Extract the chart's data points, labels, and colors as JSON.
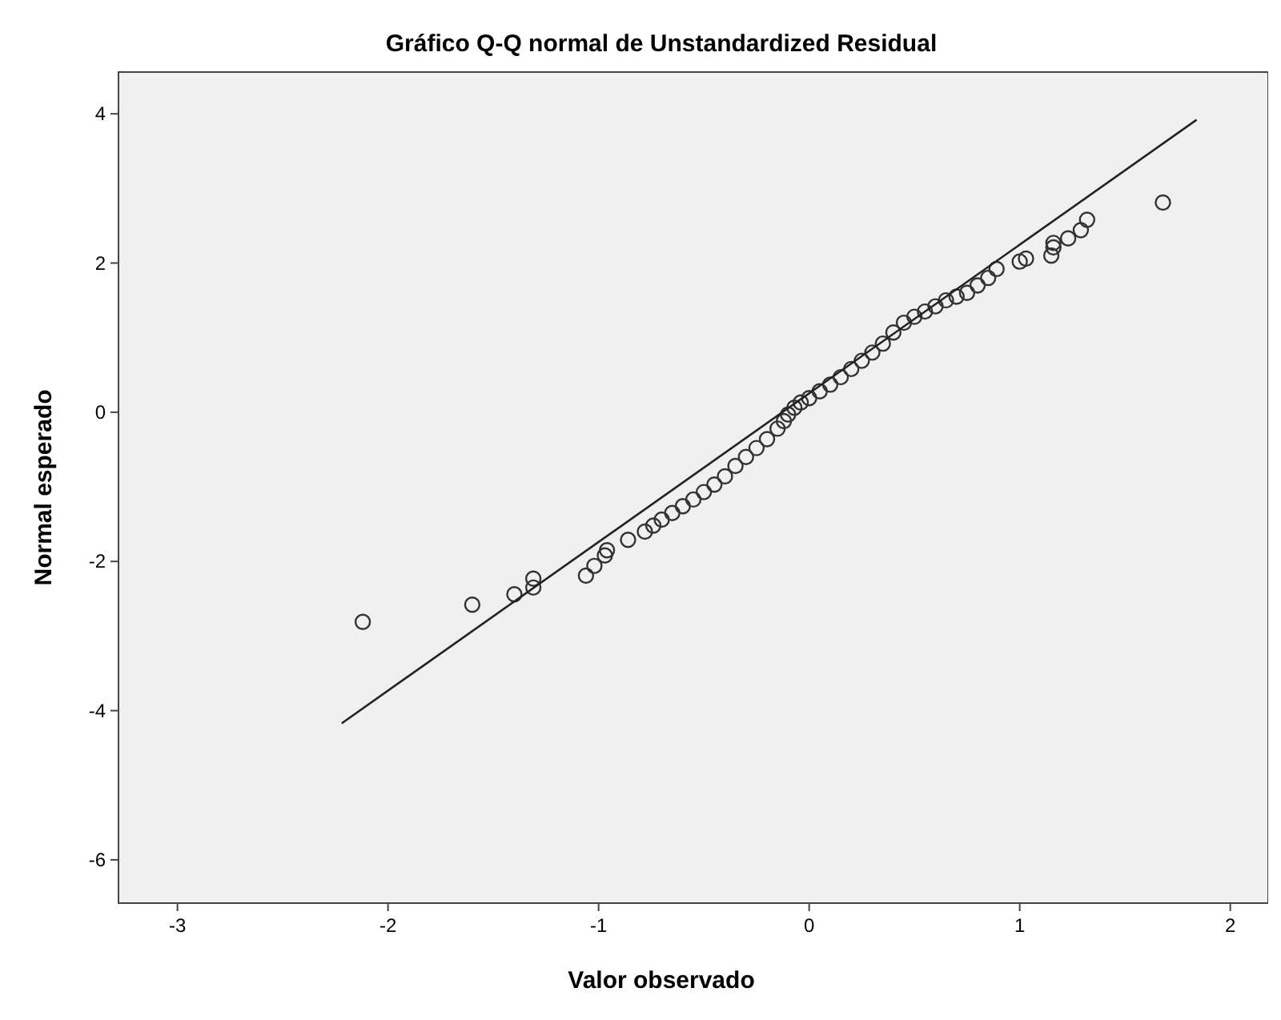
{
  "chart_data": {
    "type": "scatter",
    "title": "Gráfico Q-Q normal de Unstandardized Residual",
    "xlabel": "Valor observado",
    "ylabel": "Normal esperado",
    "xlim": [
      -3.28,
      2.18
    ],
    "ylim": [
      -6.58,
      4.56
    ],
    "xticks": [
      -3,
      -2,
      -1,
      0,
      1,
      2
    ],
    "yticks": [
      -6,
      -4,
      -2,
      0,
      2,
      4
    ],
    "grid": false,
    "marker": "circle",
    "series": [
      {
        "color": "#333333",
        "x": [
          -2.12,
          -1.6,
          -1.4,
          -1.31,
          -1.31,
          -1.06,
          -1.02,
          -0.97,
          -0.96,
          -0.86,
          -0.78,
          -0.74,
          -0.7,
          -0.65,
          -0.6,
          -0.55,
          -0.5,
          -0.45,
          -0.4,
          -0.35,
          -0.3,
          -0.25,
          -0.2,
          -0.15,
          -0.12,
          -0.1,
          -0.07,
          -0.04,
          0,
          0.05,
          0.1,
          0.15,
          0.2,
          0.25,
          0.3,
          0.35,
          0.4,
          0.45,
          0.5,
          0.55,
          0.6,
          0.65,
          0.7,
          0.75,
          0.8,
          0.85,
          0.89,
          1,
          1.03,
          1.15,
          1.16,
          1.16,
          1.23,
          1.29,
          1.32,
          1.68
        ],
        "values": [
          -2.81,
          -2.58,
          -2.44,
          -2.23,
          -2.35,
          -2.19,
          -2.06,
          -1.92,
          -1.85,
          -1.71,
          -1.6,
          -1.52,
          -1.44,
          -1.35,
          -1.26,
          -1.17,
          -1.07,
          -0.97,
          -0.86,
          -0.72,
          -0.6,
          -0.48,
          -0.36,
          -0.22,
          -0.12,
          -0.03,
          0.06,
          0.13,
          0.19,
          0.28,
          0.37,
          0.47,
          0.58,
          0.69,
          0.8,
          0.92,
          1.07,
          1.2,
          1.28,
          1.35,
          1.42,
          1.5,
          1.55,
          1.6,
          1.7,
          1.8,
          1.92,
          2.02,
          2.06,
          2.1,
          2.21,
          2.27,
          2.33,
          2.44,
          2.58,
          2.81
        ]
      },
      {
        "type": "line",
        "color": "#222222",
        "x": [
          -2.22,
          1.84
        ],
        "values": [
          -4.17,
          3.92
        ],
        "marker": "none",
        "line_style": "solid"
      }
    ]
  }
}
